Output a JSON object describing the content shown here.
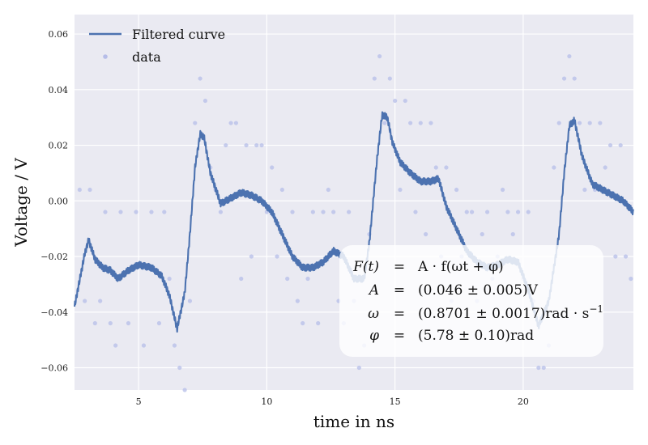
{
  "chart_data": {
    "type": "line+scatter",
    "xlabel": "time in ns",
    "ylabel": "Voltage / V",
    "xlim": [
      2.5,
      24.3
    ],
    "ylim": [
      -0.068,
      0.067
    ],
    "x_ticks": [
      5,
      10,
      15,
      20
    ],
    "y_ticks": [
      -0.06,
      -0.04,
      -0.02,
      0.0,
      0.02,
      0.04,
      0.06
    ],
    "y_tick_labels": [
      "−0.06",
      "−0.04",
      "−0.02",
      "0.00",
      "0.02",
      "0.04",
      "0.06"
    ],
    "grid": true,
    "legend_position": "top-left",
    "colors": {
      "curve": "#4c72b0",
      "data": "#b6bde8",
      "background": "#eaeaf2"
    },
    "series": [
      {
        "name": "Filtered curve",
        "kind": "line",
        "x": [
          2.5,
          2.9,
          3.05,
          3.3,
          3.6,
          3.9,
          4.2,
          4.6,
          5.0,
          5.5,
          5.9,
          6.2,
          6.5,
          6.8,
          7.0,
          7.2,
          7.4,
          7.55,
          7.8,
          8.2,
          8.6,
          9.0,
          9.4,
          9.8,
          10.2,
          10.6,
          11.0,
          11.4,
          11.8,
          12.2,
          12.6,
          13.0,
          13.4,
          13.8,
          14.0,
          14.3,
          14.5,
          14.7,
          14.9,
          15.2,
          15.6,
          16.0,
          16.4,
          16.7,
          17.0,
          17.4,
          17.8,
          18.2,
          18.6,
          19.0,
          19.4,
          19.8,
          20.2,
          20.6,
          21.0,
          21.4,
          21.6,
          21.8,
          22.0,
          22.3,
          22.7,
          23.1,
          23.5,
          23.9,
          24.3
        ],
        "y": [
          -0.038,
          -0.019,
          -0.014,
          -0.021,
          -0.024,
          -0.025,
          -0.028,
          -0.025,
          -0.023,
          -0.024,
          -0.027,
          -0.034,
          -0.046,
          -0.033,
          -0.012,
          0.012,
          0.024,
          0.023,
          0.01,
          -0.001,
          0.001,
          0.003,
          0.002,
          0.0,
          -0.004,
          -0.012,
          -0.02,
          -0.024,
          -0.024,
          -0.022,
          -0.018,
          -0.02,
          -0.028,
          -0.028,
          -0.015,
          0.015,
          0.031,
          0.03,
          0.021,
          0.014,
          0.01,
          0.007,
          0.007,
          0.008,
          -0.002,
          -0.01,
          -0.018,
          -0.022,
          -0.024,
          -0.023,
          -0.021,
          -0.022,
          -0.032,
          -0.045,
          -0.036,
          -0.012,
          0.01,
          0.027,
          0.029,
          0.016,
          0.006,
          0.004,
          0.002,
          0.0,
          -0.004
        ]
      },
      {
        "name": "data",
        "kind": "scatter",
        "x": [
          2.7,
          2.9,
          3.1,
          3.3,
          3.5,
          3.7,
          3.9,
          4.1,
          4.3,
          4.6,
          4.9,
          5.2,
          5.5,
          5.8,
          6.0,
          6.2,
          6.4,
          6.6,
          6.8,
          7.0,
          7.2,
          7.4,
          7.6,
          7.8,
          8.0,
          8.2,
          8.4,
          8.6,
          8.8,
          9.0,
          9.2,
          9.4,
          9.6,
          9.8,
          10.0,
          10.2,
          10.4,
          10.6,
          10.8,
          11.0,
          11.2,
          11.4,
          11.6,
          11.8,
          12.0,
          12.2,
          12.4,
          12.6,
          12.8,
          13.0,
          13.2,
          13.4,
          13.6,
          13.8,
          14.0,
          14.2,
          14.4,
          14.6,
          14.8,
          15.0,
          15.2,
          15.4,
          15.6,
          15.8,
          16.0,
          16.2,
          16.4,
          16.6,
          16.8,
          17.0,
          17.2,
          17.4,
          17.6,
          17.8,
          18.0,
          18.2,
          18.4,
          18.6,
          18.8,
          19.0,
          19.2,
          19.4,
          19.6,
          19.8,
          20.0,
          20.2,
          20.4,
          20.6,
          20.8,
          21.0,
          21.2,
          21.4,
          21.6,
          21.8,
          22.0,
          22.2,
          22.4,
          22.6,
          22.8,
          23.0,
          23.2,
          23.4,
          23.6,
          23.8,
          24.0,
          24.2
        ],
        "y": [
          0.004,
          -0.036,
          0.004,
          -0.044,
          -0.036,
          -0.004,
          -0.044,
          -0.052,
          -0.004,
          -0.044,
          -0.004,
          -0.052,
          -0.004,
          -0.044,
          -0.004,
          -0.028,
          -0.052,
          -0.06,
          -0.068,
          -0.036,
          0.028,
          0.044,
          0.036,
          0.012,
          0.004,
          -0.004,
          0.02,
          0.028,
          0.028,
          -0.028,
          0.02,
          -0.02,
          0.02,
          0.02,
          -0.004,
          0.012,
          -0.02,
          0.004,
          -0.028,
          -0.004,
          -0.036,
          -0.044,
          -0.028,
          -0.004,
          -0.044,
          -0.004,
          0.004,
          -0.004,
          -0.036,
          -0.044,
          -0.004,
          -0.036,
          -0.06,
          -0.052,
          -0.012,
          0.044,
          0.052,
          0.028,
          0.044,
          0.036,
          0.004,
          0.036,
          0.028,
          -0.004,
          0.028,
          -0.012,
          0.028,
          0.012,
          -0.02,
          0.012,
          -0.036,
          0.004,
          -0.02,
          -0.004,
          -0.004,
          -0.036,
          -0.012,
          -0.004,
          -0.028,
          -0.02,
          0.004,
          -0.004,
          -0.012,
          -0.004,
          -0.028,
          -0.004,
          -0.036,
          -0.06,
          -0.06,
          -0.052,
          0.012,
          0.028,
          0.044,
          0.052,
          0.044,
          0.028,
          0.004,
          0.028,
          0.004,
          0.028,
          0.012,
          0.02,
          -0.02,
          0.02,
          -0.02,
          -0.028
        ]
      }
    ],
    "annotation": {
      "lines": [
        {
          "lhs": "F(t)",
          "op": "=",
          "rhs": "A · f(ωt + φ)"
        },
        {
          "lhs": "A",
          "op": "=",
          "rhs": "(0.046 ± 0.005)V"
        },
        {
          "lhs": "ω",
          "op": "=",
          "rhs": "(0.8701 ± 0.0017)rad · s",
          "sup": "−1"
        },
        {
          "lhs": "φ",
          "op": "=",
          "rhs": "(5.78 ± 0.10)rad"
        }
      ]
    }
  }
}
